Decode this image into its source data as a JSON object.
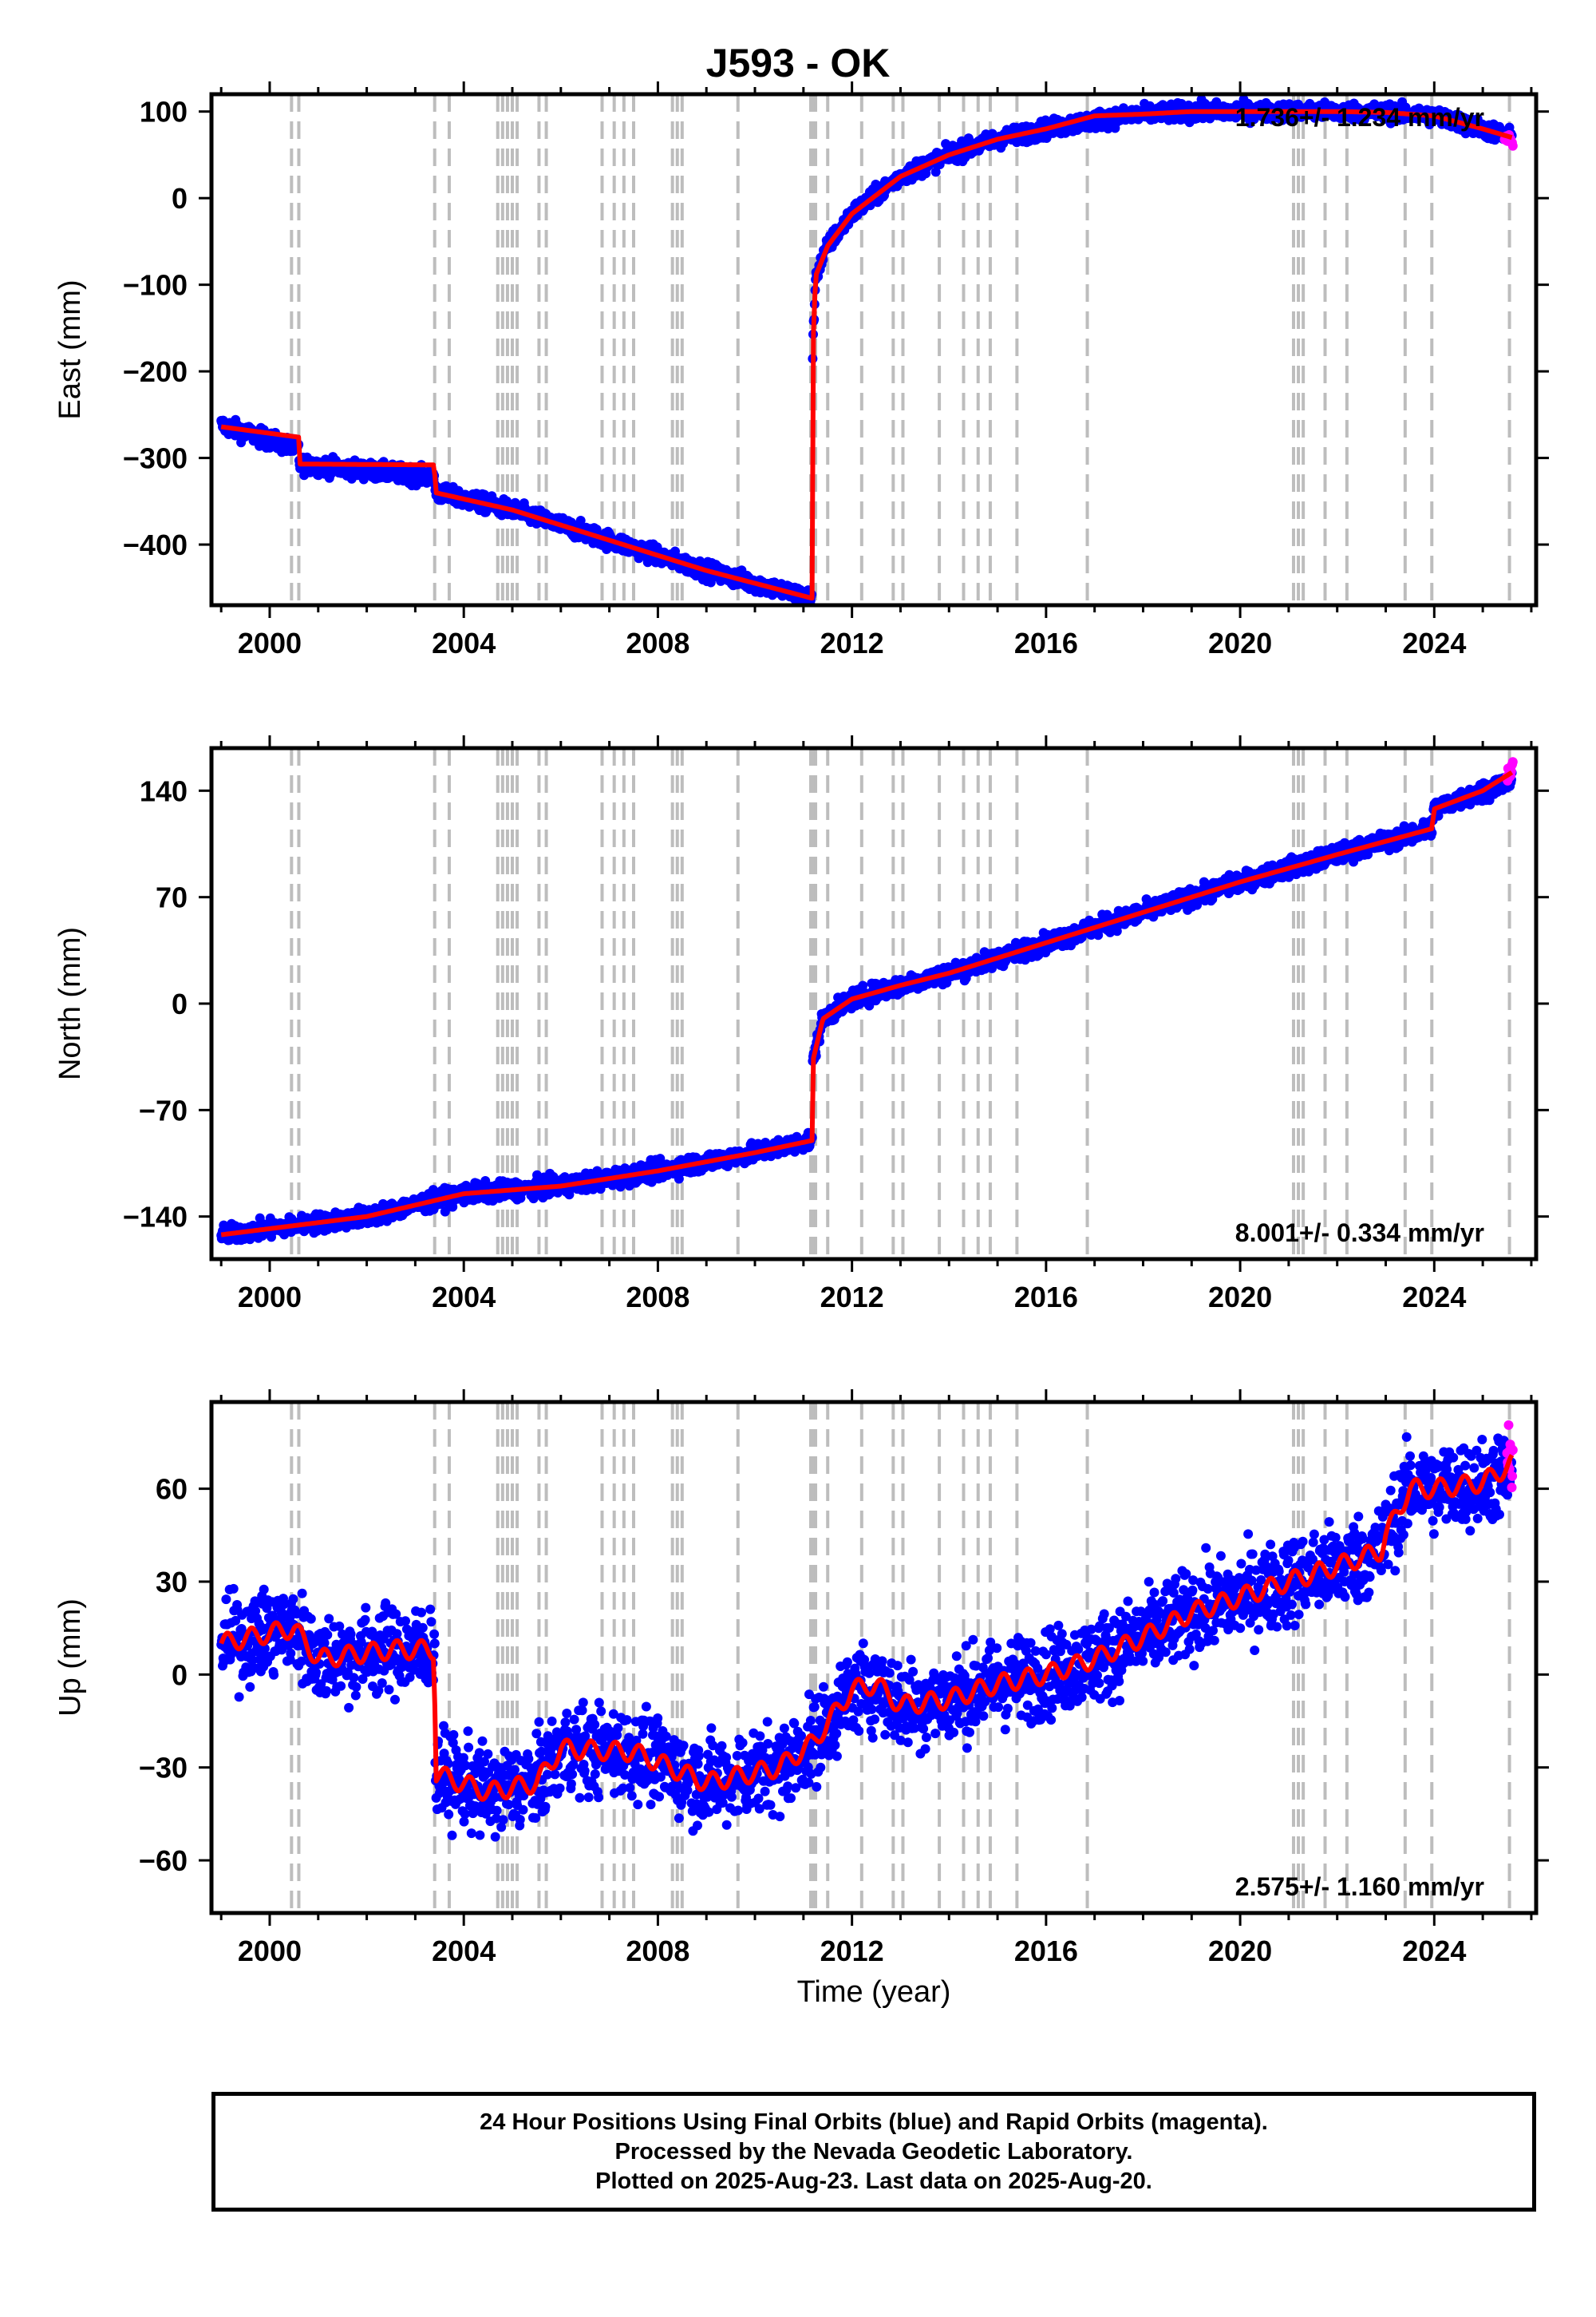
{
  "figure": {
    "title": "J593 - OK",
    "xlabel": "Time (year)",
    "footer": [
      "24 Hour Positions Using Final Orbits (blue) and Rapid Orbits (magenta).",
      "Processed by the Nevada Geodetic Laboratory.",
      "Plotted on 2025-Aug-23. Last data on 2025-Aug-20."
    ],
    "colors": {
      "final_points": "#0000ff",
      "rapid_points": "#ff00ff",
      "model": "#ff0000",
      "event_lines": "#bdbdbd"
    }
  },
  "chart_data": [
    {
      "type": "scatter",
      "panel": "east",
      "ylabel": "East (mm)",
      "rate": "1.736+/- 1.234 mm/yr",
      "xlim": [
        1998.8,
        2026.1
      ],
      "ylim": [
        -470,
        120
      ],
      "x_ticks": [
        2000,
        2004,
        2008,
        2012,
        2016,
        2020,
        2024
      ],
      "y_ticks": [
        -400,
        -300,
        -200,
        -100,
        0,
        100
      ],
      "series": [
        {
          "name": "Final Orbits",
          "color": "#0000ff",
          "noise": 5,
          "x": [
            1999.0,
            2000.6,
            2000.61,
            2003.4,
            2003.41,
            2005.0,
            2007.0,
            2009.0,
            2011.18,
            2011.19,
            2011.25,
            2011.5,
            2012.0,
            2013.0,
            2014.0,
            2015.0,
            2016.0,
            2017.0,
            2018.0,
            2019.0,
            2020.0,
            2021.0,
            2022.0,
            2023.0,
            2024.0,
            2025.0,
            2025.6
          ],
          "y": [
            -262,
            -290,
            -307,
            -322,
            -340,
            -360,
            -395,
            -430,
            -462,
            -180,
            -90,
            -55,
            -18,
            25,
            50,
            68,
            80,
            90,
            97,
            100,
            100,
            100,
            100,
            99,
            95,
            80,
            70
          ]
        },
        {
          "name": "Rapid Orbits",
          "color": "#ff00ff",
          "noise": 3,
          "x": [
            2025.45,
            2025.62
          ],
          "y": [
            73,
            64
          ]
        },
        {
          "name": "Model",
          "color": "#ff0000",
          "line": true,
          "step_series": true,
          "x": [
            1999.0,
            2000.6,
            2000.61,
            2003.4,
            2003.41,
            2005.0,
            2007.0,
            2009.0,
            2011.18,
            2011.19,
            2011.25,
            2011.5,
            2012.0,
            2013.0,
            2014.0,
            2015.0,
            2016.0,
            2017.0,
            2018.0,
            2019.0,
            2020.0,
            2021.0,
            2022.0,
            2023.0,
            2024.0,
            2025.0,
            2025.6
          ],
          "y": [
            -264,
            -276,
            -307,
            -308,
            -340,
            -360,
            -395,
            -430,
            -462,
            -180,
            -90,
            -55,
            -18,
            25,
            50,
            68,
            80,
            95,
            97,
            100,
            100,
            100,
            100,
            99,
            95,
            80,
            70
          ]
        }
      ]
    },
    {
      "type": "scatter",
      "panel": "north",
      "ylabel": "North (mm)",
      "rate": "8.001+/- 0.334 mm/yr",
      "xlim": [
        1998.8,
        2026.1
      ],
      "ylim": [
        -168,
        168
      ],
      "x_ticks": [
        2000,
        2004,
        2008,
        2012,
        2016,
        2020,
        2024
      ],
      "y_ticks": [
        -140,
        -70,
        0,
        70,
        140
      ],
      "series": [
        {
          "name": "Final Orbits",
          "color": "#0000ff",
          "noise": 3,
          "x": [
            1999.0,
            2002.0,
            2004.0,
            2006.0,
            2008.0,
            2010.0,
            2011.18,
            2011.19,
            2011.4,
            2012.0,
            2013.0,
            2014.0,
            2015.0,
            2016.0,
            2018.0,
            2020.0,
            2022.0,
            2023.95,
            2024.0,
            2025.0,
            2025.6
          ],
          "y": [
            -152,
            -140,
            -125,
            -120,
            -110,
            -98,
            -90,
            -38,
            -10,
            3,
            12,
            20,
            30,
            40,
            60,
            80,
            98,
            115,
            128,
            140,
            147
          ]
        },
        {
          "name": "Rapid Orbits",
          "color": "#ff00ff",
          "noise": 2,
          "x": [
            2025.5,
            2025.62
          ],
          "y": [
            148,
            158
          ]
        },
        {
          "name": "Model",
          "color": "#ff0000",
          "line": true,
          "x": [
            1999.0,
            2002.0,
            2004.0,
            2006.0,
            2008.0,
            2010.0,
            2011.18,
            2011.19,
            2011.4,
            2012.0,
            2013.0,
            2014.0,
            2015.0,
            2016.0,
            2018.0,
            2020.0,
            2022.0,
            2023.95,
            2024.0,
            2025.0,
            2025.6
          ],
          "y": [
            -152,
            -140,
            -125,
            -120,
            -110,
            -98,
            -90,
            -38,
            -10,
            3,
            12,
            20,
            30,
            40,
            60,
            80,
            98,
            115,
            128,
            140,
            152
          ]
        }
      ]
    },
    {
      "type": "scatter",
      "panel": "up",
      "ylabel": "Up (mm)",
      "rate": "2.575+/- 1.160 mm/yr",
      "xlim": [
        1998.8,
        2026.1
      ],
      "ylim": [
        -77,
        88
      ],
      "x_ticks": [
        2000,
        2004,
        2008,
        2012,
        2016,
        2020,
        2024
      ],
      "y_ticks": [
        -60,
        -30,
        0,
        30,
        60
      ],
      "series": [
        {
          "name": "Final Orbits",
          "color": "#0000ff",
          "noise": 7,
          "x": [
            1999.0,
            2000.5,
            2001.0,
            2002.5,
            2003.4,
            2003.41,
            2004.5,
            2005.5,
            2006.0,
            2007.5,
            2009.0,
            2010.5,
            2011.2,
            2012.0,
            2012.5,
            2013.0,
            2014.0,
            2015.0,
            2016.0,
            2017.0,
            2018.0,
            2019.0,
            2020.0,
            2021.0,
            2022.0,
            2022.9,
            2023.0,
            2023.5,
            2024.0,
            2025.0,
            2025.6
          ],
          "y": [
            10,
            15,
            5,
            8,
            8,
            -32,
            -38,
            -35,
            -24,
            -25,
            -35,
            -30,
            -22,
            -5,
            -3,
            -10,
            -8,
            -3,
            0,
            5,
            12,
            20,
            25,
            30,
            35,
            40,
            45,
            60,
            60,
            62,
            65
          ]
        },
        {
          "name": "Rapid Orbits",
          "color": "#ff00ff",
          "noise": 6,
          "x": [
            2025.5,
            2025.62
          ],
          "y": [
            66,
            72
          ]
        },
        {
          "name": "Model",
          "color": "#ff0000",
          "line": true,
          "seasonal": 3,
          "x": [
            1999.0,
            2000.5,
            2001.0,
            2002.5,
            2003.4,
            2003.41,
            2004.5,
            2005.5,
            2006.0,
            2007.5,
            2009.0,
            2010.5,
            2011.2,
            2012.0,
            2012.5,
            2013.0,
            2014.0,
            2015.0,
            2016.0,
            2017.0,
            2018.0,
            2019.0,
            2020.0,
            2021.0,
            2022.0,
            2022.9,
            2023.0,
            2023.5,
            2024.0,
            2025.0,
            2025.6
          ],
          "y": [
            10,
            15,
            5,
            8,
            8,
            -32,
            -38,
            -35,
            -24,
            -25,
            -35,
            -30,
            -22,
            -5,
            -3,
            -10,
            -8,
            -3,
            0,
            5,
            12,
            20,
            25,
            30,
            35,
            40,
            45,
            60,
            60,
            62,
            68
          ]
        }
      ]
    }
  ],
  "event_lines": [
    2000.45,
    2000.6,
    2003.4,
    2003.7,
    2004.7,
    2004.8,
    2004.9,
    2005.0,
    2005.1,
    2005.55,
    2005.7,
    2006.85,
    2007.1,
    2007.3,
    2007.5,
    2008.3,
    2008.4,
    2008.5,
    2009.65,
    2011.15,
    2011.2,
    2011.25,
    2011.5,
    2012.2,
    2012.85,
    2013.05,
    2013.8,
    2014.3,
    2014.6,
    2014.85,
    2015.4,
    2016.85,
    2021.1,
    2021.2,
    2021.3,
    2021.75,
    2022.2,
    2023.4,
    2023.95,
    2025.55
  ]
}
